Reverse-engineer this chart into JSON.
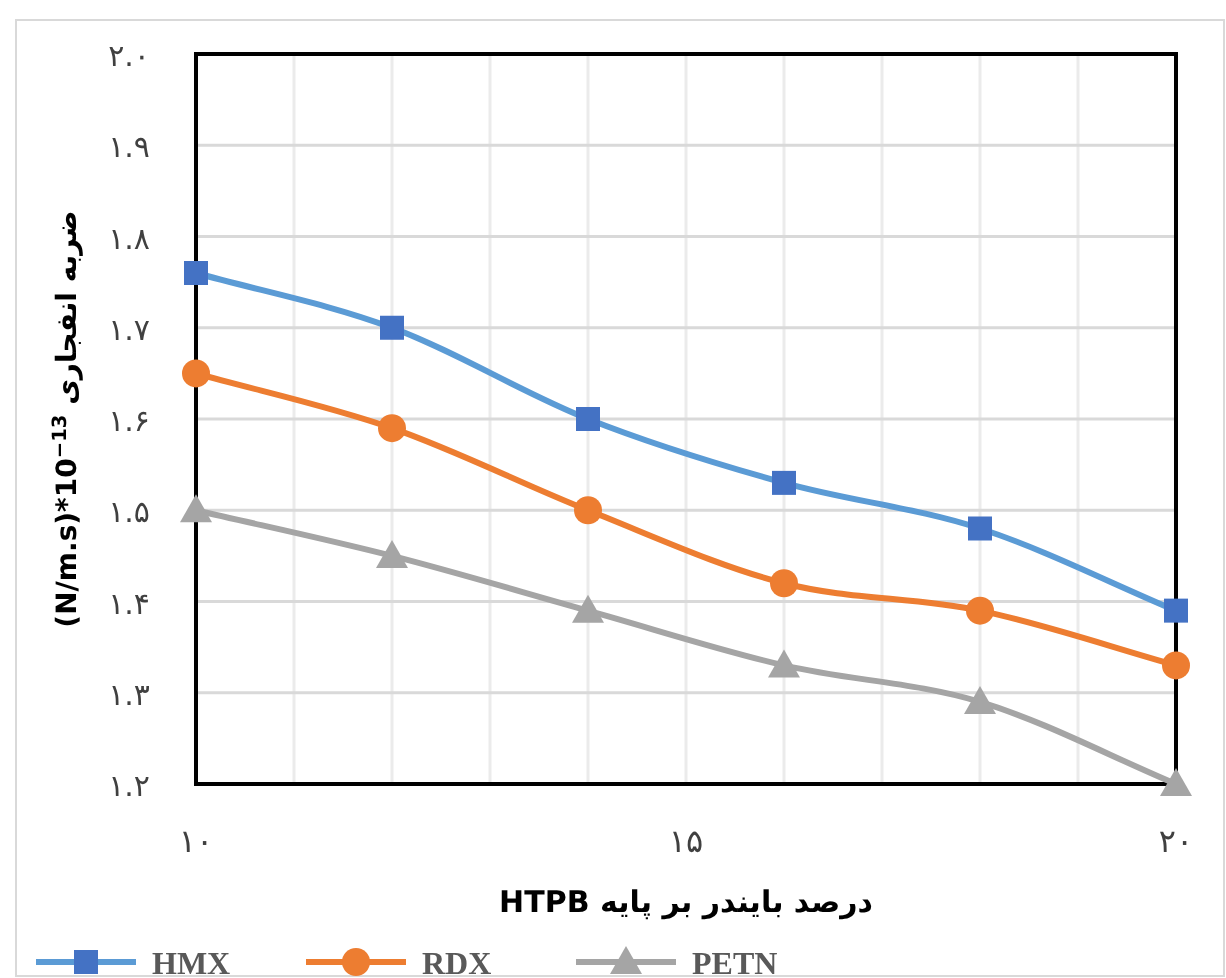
{
  "chart_data": {
    "type": "line",
    "xlabel": "درصد بایندر بر پایه HTPB",
    "ylabel": "(N/m.s)*10$^{−13}$ ضربه انفجاری",
    "x": [
      10,
      12,
      14,
      16,
      18,
      20
    ],
    "series": [
      {
        "name": "HMX",
        "color": "#5b9bd5",
        "marker": "square",
        "values": [
          1.76,
          1.7,
          1.6,
          1.53,
          1.48,
          1.39
        ]
      },
      {
        "name": "RDX",
        "color": "#ed7d31",
        "marker": "circle",
        "values": [
          1.65,
          1.59,
          1.5,
          1.42,
          1.39,
          1.33
        ]
      },
      {
        "name": "PETN",
        "color": "#a5a5a5",
        "marker": "triangle",
        "values": [
          1.5,
          1.45,
          1.39,
          1.33,
          1.29,
          1.2
        ]
      }
    ],
    "xlim": [
      10,
      20
    ],
    "xticks": [
      {
        "value": 10,
        "label": "۱۰"
      },
      {
        "value": 11,
        "label": null
      },
      {
        "value": 12,
        "label": null
      },
      {
        "value": 13,
        "label": null
      },
      {
        "value": 14,
        "label": null
      },
      {
        "value": 15,
        "label": "۱۵"
      },
      {
        "value": 16,
        "label": null
      },
      {
        "value": 17,
        "label": null
      },
      {
        "value": 18,
        "label": null
      },
      {
        "value": 19,
        "label": null
      },
      {
        "value": 20,
        "label": "۲۰"
      }
    ],
    "ylim": [
      1.2,
      2.0
    ],
    "yticks": [
      {
        "value": 1.2,
        "label": "۱.۲"
      },
      {
        "value": 1.3,
        "label": "۱.۳"
      },
      {
        "value": 1.4,
        "label": "۱.۴"
      },
      {
        "value": 1.5,
        "label": "۱.۵"
      },
      {
        "value": 1.6,
        "label": "۱.۶"
      },
      {
        "value": 1.7,
        "label": "۱.۷"
      },
      {
        "value": 1.8,
        "label": "۱.۸"
      },
      {
        "value": 1.9,
        "label": "۱.۹"
      },
      {
        "value": 2.0,
        "label": "۲.۰"
      }
    ],
    "grid": true,
    "legend": "bottom",
    "line_style": "solid"
  }
}
